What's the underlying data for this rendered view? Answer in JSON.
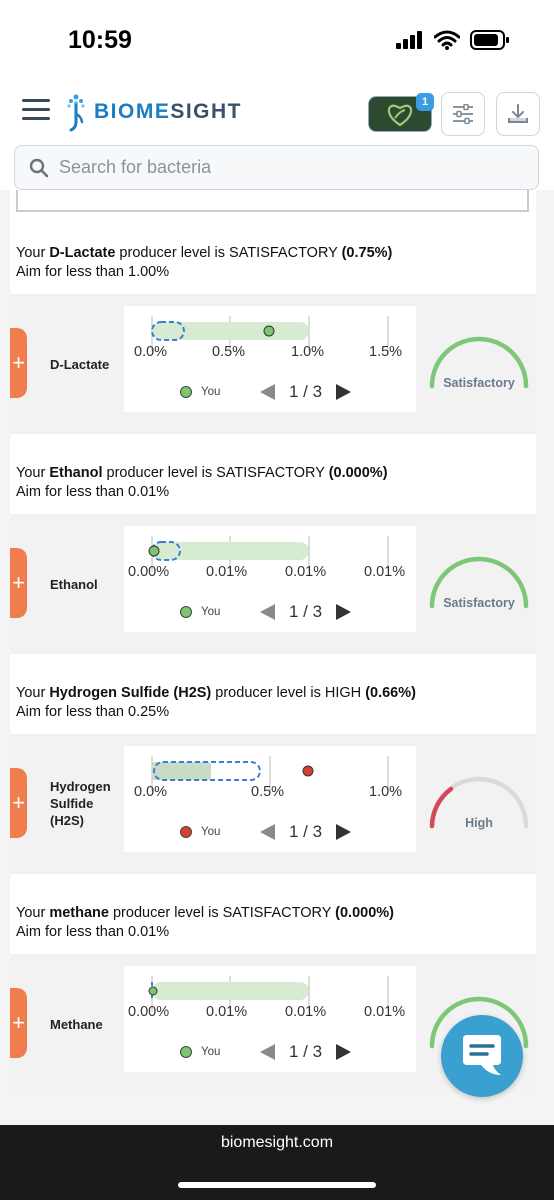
{
  "status_bar": {
    "time": "10:59"
  },
  "header": {
    "logo_prefix": "BIOME",
    "logo_suffix": "SIGHT",
    "badge_count": "1"
  },
  "search": {
    "placeholder": "Search for bacteria"
  },
  "sections": [
    {
      "pre": "Your ",
      "name_bold": "D-Lactate",
      "mid": " producer level is SATISFACTORY  ",
      "value": "(0.75%)",
      "aim": "Aim for less than 1.00%",
      "bug_name": "D-Lactate",
      "ticks": [
        "0.0%",
        "0.5%",
        "1.0%",
        "1.5%"
      ],
      "legend": "You",
      "pager": "1 / 3",
      "gauge": "Satisfactory"
    },
    {
      "pre": "Your ",
      "name_bold": "Ethanol",
      "mid": " producer level is SATISFACTORY  ",
      "value": "(0.000%)",
      "aim": "Aim for less than 0.01%",
      "bug_name": "Ethanol",
      "ticks": [
        "0.00%",
        "0.01%",
        "0.01%",
        "0.01%"
      ],
      "legend": "You",
      "pager": "1 / 3",
      "gauge": "Satisfactory"
    },
    {
      "pre": "Your ",
      "name_bold": "Hydrogen Sulfide (H2S)",
      "mid": " producer level is HIGH  ",
      "value": "(0.66%)",
      "aim": "Aim for less than 0.25%",
      "bug_name_lines": [
        "Hydrogen",
        "Sulfide",
        "(H2S)"
      ],
      "ticks": [
        "0.0%",
        "0.5%",
        "1.0%"
      ],
      "legend": "You",
      "pager": "1 / 3",
      "gauge": "High"
    },
    {
      "pre": "Your ",
      "name_bold": "methane",
      "mid": " producer level is SATISFACTORY  ",
      "value": "(0.000%)",
      "aim": "Aim for less than 0.01%",
      "bug_name": "Methane",
      "ticks": [
        "0.00%",
        "0.01%",
        "0.01%",
        "0.01%"
      ],
      "legend": "You",
      "pager": "1 / 3",
      "gauge": "Satisfactory"
    }
  ],
  "footer": {
    "url": "biomesight.com"
  }
}
